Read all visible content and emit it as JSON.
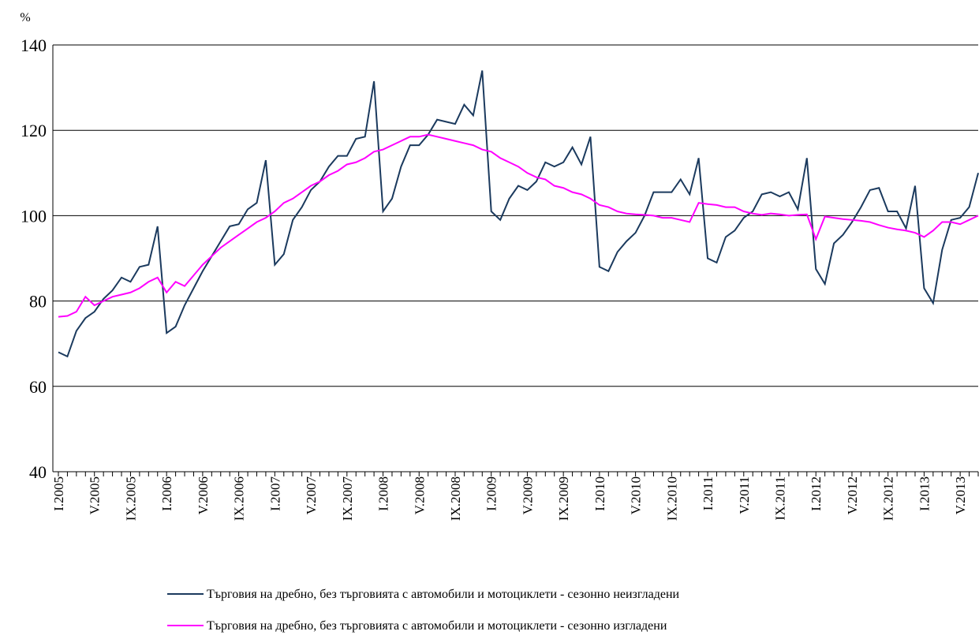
{
  "chart_data": {
    "type": "line",
    "y_label": "%",
    "categories": [
      "I.2005",
      null,
      null,
      null,
      "V.2005",
      null,
      null,
      null,
      "IX.2005",
      null,
      null,
      null,
      "I.2006",
      null,
      null,
      null,
      "V.2006",
      null,
      null,
      null,
      "IX.2006",
      null,
      null,
      null,
      "I.2007",
      null,
      null,
      null,
      "V.2007",
      null,
      null,
      null,
      "IX.2007",
      null,
      null,
      null,
      "I.2008",
      null,
      null,
      null,
      "V.2008",
      null,
      null,
      null,
      "IX.2008",
      null,
      null,
      null,
      "I.2009",
      null,
      null,
      null,
      "V.2009",
      null,
      null,
      null,
      "IX.2009",
      null,
      null,
      null,
      "I.2010",
      null,
      null,
      null,
      "V.2010",
      null,
      null,
      null,
      "IX.2010",
      null,
      null,
      null,
      "I.2011",
      null,
      null,
      null,
      "V.2011",
      null,
      null,
      null,
      "IX.2011",
      null,
      null,
      null,
      "I.2012",
      null,
      null,
      null,
      "V.2012",
      null,
      null,
      null,
      "IX.2012",
      null,
      null,
      null,
      "I.2013",
      null,
      null,
      null,
      "V.2013",
      null,
      null
    ],
    "series": [
      {
        "name": "Търговия на дребно, без търговията с автомобили и мотоциклети - сезонно неизгладени",
        "color": "#1b3a5e",
        "values": [
          68,
          67,
          73,
          76,
          77.5,
          80.5,
          82.5,
          85.5,
          84.5,
          88,
          88.5,
          97.5,
          72.5,
          74,
          79,
          83,
          87,
          90.5,
          94,
          97.5,
          98,
          101.5,
          103,
          113,
          88.5,
          91,
          99,
          102,
          106,
          108,
          111.5,
          114,
          114,
          118,
          118.5,
          131.5,
          101,
          104,
          111.5,
          116.5,
          116.5,
          119,
          122.5,
          122,
          121.5,
          126,
          123.5,
          134,
          101,
          99,
          104,
          107,
          106,
          108,
          112.5,
          111.5,
          112.5,
          116,
          112,
          118.5,
          88,
          87,
          91.5,
          94,
          96,
          100,
          105.5,
          105.5,
          105.5,
          108.5,
          105,
          113.5,
          90,
          89,
          95,
          96.5,
          99.5,
          101,
          105,
          105.5,
          104.5,
          105.5,
          101.5,
          113.5,
          87.5,
          84,
          93.5,
          95.5,
          98.5,
          102,
          106,
          106.5,
          101,
          101,
          97,
          107,
          83,
          79.5,
          92,
          99,
          99.5,
          102,
          110
        ]
      },
      {
        "name": "Търговия на дребно, без търговията с автомобили и мотоциклети - сезонно изгладени",
        "color": "#ff00ff",
        "values": [
          76.3,
          76.5,
          77.5,
          81,
          79,
          80,
          81,
          81.5,
          82,
          83,
          84.5,
          85.5,
          82,
          84.5,
          83.5,
          86,
          88.5,
          90.5,
          92.5,
          94,
          95.5,
          97,
          98.5,
          99.5,
          101,
          103,
          104,
          105.5,
          107,
          108,
          109.5,
          110.5,
          112,
          112.5,
          113.5,
          115,
          115.5,
          116.5,
          117.5,
          118.5,
          118.5,
          119,
          118.5,
          118,
          117.5,
          117,
          116.5,
          115.5,
          115,
          113.5,
          112.5,
          111.5,
          110,
          109,
          108.5,
          107,
          106.5,
          105.5,
          105,
          104,
          102.5,
          102,
          101,
          100.5,
          100.3,
          100.2,
          100,
          99.5,
          99.5,
          99,
          98.5,
          103,
          102.7,
          102.5,
          102,
          102,
          101,
          100.5,
          100.2,
          100.5,
          100.3,
          100,
          100.2,
          100.3,
          94.5,
          99.8,
          99.5,
          99.2,
          99,
          98.8,
          98.5,
          97.8,
          97.2,
          96.8,
          96.5,
          96,
          95,
          96.5,
          98.5,
          98.5,
          98,
          99,
          100
        ]
      }
    ],
    "ylim": [
      40,
      140
    ],
    "yticks": [
      40,
      60,
      80,
      100,
      120,
      140
    ],
    "grid": true,
    "legend": "bottom"
  }
}
